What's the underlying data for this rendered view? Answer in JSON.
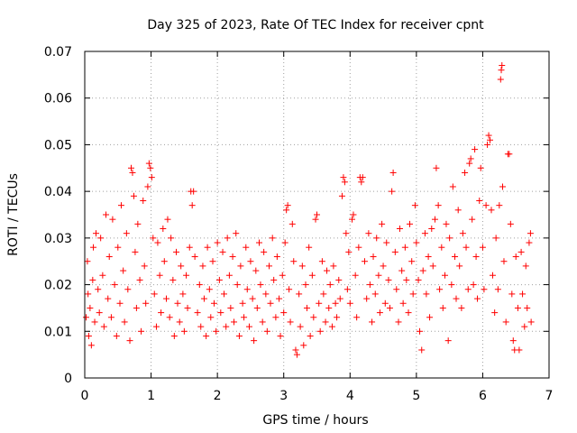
{
  "chart_data": {
    "type": "scatter",
    "title": "Day 325 of 2023, Rate Of TEC Index for receiver cpnt",
    "xlabel": "GPS time / hours",
    "ylabel": "ROTI / TECUs",
    "xlim": [
      0,
      7
    ],
    "ylim": [
      0,
      0.07
    ],
    "x_ticks": [
      0,
      1,
      2,
      3,
      4,
      5,
      6,
      7
    ],
    "y_ticks": [
      0,
      0.01,
      0.02,
      0.03,
      0.04,
      0.05,
      0.06,
      0.07
    ],
    "x_tick_labels": [
      "0",
      "1",
      "2",
      "3",
      "4",
      "5",
      "6",
      "7"
    ],
    "y_tick_labels": [
      "0",
      "0.01",
      "0.02",
      "0.03",
      "0.04",
      "0.05",
      "0.06",
      "0.07"
    ],
    "grid": true,
    "marker": "+",
    "color": "#ff0000",
    "series": [
      {
        "name": "ROTI",
        "points": [
          [
            0.02,
            0.013
          ],
          [
            0.04,
            0.025
          ],
          [
            0.05,
            0.018
          ],
          [
            0.06,
            0.009
          ],
          [
            0.08,
            0.015
          ],
          [
            0.1,
            0.007
          ],
          [
            0.12,
            0.021
          ],
          [
            0.13,
            0.028
          ],
          [
            0.15,
            0.012
          ],
          [
            0.17,
            0.031
          ],
          [
            0.2,
            0.019
          ],
          [
            0.22,
            0.014
          ],
          [
            0.24,
            0.03
          ],
          [
            0.27,
            0.022
          ],
          [
            0.29,
            0.011
          ],
          [
            0.32,
            0.035
          ],
          [
            0.35,
            0.017
          ],
          [
            0.37,
            0.026
          ],
          [
            0.4,
            0.013
          ],
          [
            0.42,
            0.034
          ],
          [
            0.45,
            0.02
          ],
          [
            0.48,
            0.009
          ],
          [
            0.5,
            0.028
          ],
          [
            0.53,
            0.016
          ],
          [
            0.55,
            0.037
          ],
          [
            0.58,
            0.023
          ],
          [
            0.6,
            0.012
          ],
          [
            0.63,
            0.031
          ],
          [
            0.65,
            0.019
          ],
          [
            0.68,
            0.008
          ],
          [
            0.7,
            0.045
          ],
          [
            0.72,
            0.044
          ],
          [
            0.74,
            0.039
          ],
          [
            0.76,
            0.027
          ],
          [
            0.78,
            0.015
          ],
          [
            0.8,
            0.033
          ],
          [
            0.83,
            0.021
          ],
          [
            0.85,
            0.01
          ],
          [
            0.88,
            0.038
          ],
          [
            0.9,
            0.024
          ],
          [
            0.92,
            0.016
          ],
          [
            0.95,
            0.041
          ],
          [
            0.97,
            0.046
          ],
          [
            0.99,
            0.045
          ],
          [
            1.01,
            0.043
          ],
          [
            1.03,
            0.03
          ],
          [
            1.05,
            0.018
          ],
          [
            1.08,
            0.011
          ],
          [
            1.1,
            0.029
          ],
          [
            1.13,
            0.022
          ],
          [
            1.15,
            0.014
          ],
          [
            1.18,
            0.032
          ],
          [
            1.2,
            0.025
          ],
          [
            1.23,
            0.017
          ],
          [
            1.25,
            0.034
          ],
          [
            1.28,
            0.013
          ],
          [
            1.3,
            0.03
          ],
          [
            1.33,
            0.021
          ],
          [
            1.35,
            0.009
          ],
          [
            1.38,
            0.027
          ],
          [
            1.4,
            0.016
          ],
          [
            1.43,
            0.012
          ],
          [
            1.45,
            0.024
          ],
          [
            1.48,
            0.018
          ],
          [
            1.5,
            0.01
          ],
          [
            1.53,
            0.022
          ],
          [
            1.55,
            0.015
          ],
          [
            1.58,
            0.028
          ],
          [
            1.6,
            0.04
          ],
          [
            1.62,
            0.037
          ],
          [
            1.64,
            0.04
          ],
          [
            1.66,
            0.026
          ],
          [
            1.7,
            0.014
          ],
          [
            1.73,
            0.02
          ],
          [
            1.75,
            0.011
          ],
          [
            1.78,
            0.024
          ],
          [
            1.8,
            0.017
          ],
          [
            1.83,
            0.009
          ],
          [
            1.85,
            0.028
          ],
          [
            1.88,
            0.019
          ],
          [
            1.9,
            0.013
          ],
          [
            1.93,
            0.025
          ],
          [
            1.95,
            0.016
          ],
          [
            1.98,
            0.01
          ],
          [
            2.0,
            0.029
          ],
          [
            2.03,
            0.021
          ],
          [
            2.05,
            0.014
          ],
          [
            2.08,
            0.027
          ],
          [
            2.1,
            0.018
          ],
          [
            2.13,
            0.011
          ],
          [
            2.15,
            0.03
          ],
          [
            2.18,
            0.022
          ],
          [
            2.2,
            0.015
          ],
          [
            2.23,
            0.026
          ],
          [
            2.25,
            0.012
          ],
          [
            2.28,
            0.031
          ],
          [
            2.3,
            0.02
          ],
          [
            2.33,
            0.009
          ],
          [
            2.35,
            0.024
          ],
          [
            2.38,
            0.016
          ],
          [
            2.4,
            0.013
          ],
          [
            2.43,
            0.028
          ],
          [
            2.45,
            0.019
          ],
          [
            2.48,
            0.011
          ],
          [
            2.5,
            0.025
          ],
          [
            2.53,
            0.017
          ],
          [
            2.55,
            0.008
          ],
          [
            2.58,
            0.023
          ],
          [
            2.6,
            0.015
          ],
          [
            2.63,
            0.029
          ],
          [
            2.65,
            0.02
          ],
          [
            2.68,
            0.012
          ],
          [
            2.7,
            0.027
          ],
          [
            2.73,
            0.018
          ],
          [
            2.75,
            0.01
          ],
          [
            2.78,
            0.024
          ],
          [
            2.8,
            0.016
          ],
          [
            2.83,
            0.03
          ],
          [
            2.85,
            0.021
          ],
          [
            2.88,
            0.013
          ],
          [
            2.9,
            0.026
          ],
          [
            2.93,
            0.017
          ],
          [
            2.95,
            0.009
          ],
          [
            2.98,
            0.022
          ],
          [
            3.0,
            0.014
          ],
          [
            3.02,
            0.029
          ],
          [
            3.04,
            0.036
          ],
          [
            3.06,
            0.037
          ],
          [
            3.08,
            0.019
          ],
          [
            3.1,
            0.012
          ],
          [
            3.13,
            0.033
          ],
          [
            3.15,
            0.025
          ],
          [
            3.18,
            0.006
          ],
          [
            3.2,
            0.005
          ],
          [
            3.23,
            0.018
          ],
          [
            3.25,
            0.011
          ],
          [
            3.28,
            0.024
          ],
          [
            3.3,
            0.007
          ],
          [
            3.33,
            0.02
          ],
          [
            3.35,
            0.015
          ],
          [
            3.38,
            0.028
          ],
          [
            3.4,
            0.009
          ],
          [
            3.43,
            0.022
          ],
          [
            3.45,
            0.013
          ],
          [
            3.48,
            0.034
          ],
          [
            3.5,
            0.035
          ],
          [
            3.53,
            0.016
          ],
          [
            3.55,
            0.01
          ],
          [
            3.58,
            0.025
          ],
          [
            3.6,
            0.018
          ],
          [
            3.63,
            0.012
          ],
          [
            3.65,
            0.023
          ],
          [
            3.68,
            0.015
          ],
          [
            3.7,
            0.02
          ],
          [
            3.73,
            0.011
          ],
          [
            3.75,
            0.024
          ],
          [
            3.78,
            0.016
          ],
          [
            3.8,
            0.013
          ],
          [
            3.83,
            0.021
          ],
          [
            3.85,
            0.017
          ],
          [
            3.88,
            0.039
          ],
          [
            3.9,
            0.043
          ],
          [
            3.92,
            0.042
          ],
          [
            3.94,
            0.031
          ],
          [
            3.96,
            0.019
          ],
          [
            3.98,
            0.027
          ],
          [
            4.0,
            0.016
          ],
          [
            4.03,
            0.034
          ],
          [
            4.05,
            0.035
          ],
          [
            4.08,
            0.022
          ],
          [
            4.1,
            0.013
          ],
          [
            4.13,
            0.028
          ],
          [
            4.15,
            0.043
          ],
          [
            4.17,
            0.042
          ],
          [
            4.19,
            0.043
          ],
          [
            4.22,
            0.025
          ],
          [
            4.25,
            0.017
          ],
          [
            4.28,
            0.031
          ],
          [
            4.3,
            0.02
          ],
          [
            4.33,
            0.012
          ],
          [
            4.35,
            0.026
          ],
          [
            4.38,
            0.018
          ],
          [
            4.4,
            0.03
          ],
          [
            4.43,
            0.022
          ],
          [
            4.45,
            0.014
          ],
          [
            4.48,
            0.033
          ],
          [
            4.5,
            0.024
          ],
          [
            4.53,
            0.016
          ],
          [
            4.55,
            0.029
          ],
          [
            4.58,
            0.021
          ],
          [
            4.6,
            0.015
          ],
          [
            4.63,
            0.04
          ],
          [
            4.65,
            0.044
          ],
          [
            4.68,
            0.027
          ],
          [
            4.7,
            0.019
          ],
          [
            4.73,
            0.012
          ],
          [
            4.75,
            0.032
          ],
          [
            4.78,
            0.023
          ],
          [
            4.8,
            0.016
          ],
          [
            4.83,
            0.028
          ],
          [
            4.85,
            0.021
          ],
          [
            4.88,
            0.014
          ],
          [
            4.9,
            0.033
          ],
          [
            4.93,
            0.025
          ],
          [
            4.95,
            0.018
          ],
          [
            4.98,
            0.037
          ],
          [
            5.0,
            0.029
          ],
          [
            5.03,
            0.021
          ],
          [
            5.05,
            0.01
          ],
          [
            5.08,
            0.006
          ],
          [
            5.1,
            0.023
          ],
          [
            5.13,
            0.031
          ],
          [
            5.15,
            0.018
          ],
          [
            5.18,
            0.026
          ],
          [
            5.2,
            0.013
          ],
          [
            5.23,
            0.032
          ],
          [
            5.25,
            0.024
          ],
          [
            5.28,
            0.034
          ],
          [
            5.3,
            0.045
          ],
          [
            5.33,
            0.037
          ],
          [
            5.35,
            0.019
          ],
          [
            5.38,
            0.028
          ],
          [
            5.4,
            0.015
          ],
          [
            5.43,
            0.022
          ],
          [
            5.45,
            0.033
          ],
          [
            5.48,
            0.008
          ],
          [
            5.5,
            0.03
          ],
          [
            5.53,
            0.02
          ],
          [
            5.55,
            0.041
          ],
          [
            5.58,
            0.026
          ],
          [
            5.6,
            0.017
          ],
          [
            5.63,
            0.036
          ],
          [
            5.65,
            0.024
          ],
          [
            5.68,
            0.015
          ],
          [
            5.7,
            0.031
          ],
          [
            5.73,
            0.044
          ],
          [
            5.75,
            0.028
          ],
          [
            5.78,
            0.019
          ],
          [
            5.8,
            0.046
          ],
          [
            5.82,
            0.047
          ],
          [
            5.84,
            0.034
          ],
          [
            5.86,
            0.02
          ],
          [
            5.88,
            0.049
          ],
          [
            5.9,
            0.026
          ],
          [
            5.92,
            0.017
          ],
          [
            5.95,
            0.038
          ],
          [
            5.97,
            0.045
          ],
          [
            6.0,
            0.028
          ],
          [
            6.02,
            0.019
          ],
          [
            6.05,
            0.037
          ],
          [
            6.07,
            0.05
          ],
          [
            6.09,
            0.052
          ],
          [
            6.11,
            0.051
          ],
          [
            6.13,
            0.036
          ],
          [
            6.15,
            0.022
          ],
          [
            6.18,
            0.014
          ],
          [
            6.2,
            0.03
          ],
          [
            6.23,
            0.019
          ],
          [
            6.25,
            0.037
          ],
          [
            6.27,
            0.064
          ],
          [
            6.28,
            0.066
          ],
          [
            6.29,
            0.067
          ],
          [
            6.3,
            0.041
          ],
          [
            6.32,
            0.025
          ],
          [
            6.35,
            0.012
          ],
          [
            6.38,
            0.048
          ],
          [
            6.4,
            0.048
          ],
          [
            6.42,
            0.033
          ],
          [
            6.44,
            0.018
          ],
          [
            6.46,
            0.008
          ],
          [
            6.48,
            0.006
          ],
          [
            6.5,
            0.026
          ],
          [
            6.53,
            0.015
          ],
          [
            6.55,
            0.006
          ],
          [
            6.58,
            0.027
          ],
          [
            6.6,
            0.018
          ],
          [
            6.63,
            0.011
          ],
          [
            6.65,
            0.024
          ],
          [
            6.67,
            0.015
          ],
          [
            6.7,
            0.029
          ],
          [
            6.72,
            0.031
          ],
          [
            6.73,
            0.012
          ]
        ]
      }
    ]
  }
}
